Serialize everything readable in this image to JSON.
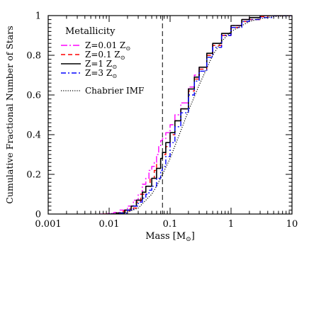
{
  "chart_data": {
    "type": "line",
    "title": "",
    "xlabel": "Mass [M",
    "xlabel_symbol": "⊙",
    "xlabel_close": "]",
    "ylabel": "Cumulative Fractional Number of Stars",
    "xscale": "log",
    "xlim": [
      0.001,
      10
    ],
    "ylim": [
      0,
      1
    ],
    "x_ticks": [
      {
        "value": 0.001,
        "label": "0.001"
      },
      {
        "value": 0.01,
        "label": "0.01"
      },
      {
        "value": 0.1,
        "label": "0.1"
      },
      {
        "value": 1,
        "label": "1"
      },
      {
        "value": 10,
        "label": "10"
      }
    ],
    "y_ticks": [
      {
        "value": 0,
        "label": "0"
      },
      {
        "value": 0.2,
        "label": "0.2"
      },
      {
        "value": 0.4,
        "label": "0.4"
      },
      {
        "value": 0.6,
        "label": "0.6"
      },
      {
        "value": 0.8,
        "label": "0.8"
      },
      {
        "value": 1,
        "label": "1"
      }
    ],
    "legend": {
      "title": "Metallicity",
      "placement": "top-left",
      "entries": [
        {
          "prefix": "Z=0.01 Z",
          "series": "Z=0.01"
        },
        {
          "prefix": "Z=0.1 Z",
          "series": "Z=0.1"
        },
        {
          "prefix": "Z=1 Z",
          "series": "Z=1"
        },
        {
          "prefix": "Z=3 Z",
          "series": "Z=3"
        }
      ],
      "sun_symbol": "⊙",
      "imf_label": "Chabrier IMF"
    },
    "vline": {
      "x": 0.075,
      "style": "dashed"
    },
    "series": [
      {
        "name": "Z=0.01 Z⊙",
        "color": "#ff00ff",
        "dash": "9,3,2,3",
        "width": 1.4,
        "step": true,
        "points": [
          [
            0.007,
            0
          ],
          [
            0.009,
            0.003
          ],
          [
            0.012,
            0.008
          ],
          [
            0.015,
            0.02
          ],
          [
            0.02,
            0.04
          ],
          [
            0.025,
            0.07
          ],
          [
            0.03,
            0.1
          ],
          [
            0.035,
            0.15
          ],
          [
            0.04,
            0.18
          ],
          [
            0.045,
            0.22
          ],
          [
            0.05,
            0.24
          ],
          [
            0.055,
            0.26
          ],
          [
            0.06,
            0.3
          ],
          [
            0.065,
            0.34
          ],
          [
            0.07,
            0.37
          ],
          [
            0.075,
            0.38
          ],
          [
            0.085,
            0.41
          ],
          [
            0.1,
            0.45
          ],
          [
            0.12,
            0.5
          ],
          [
            0.15,
            0.56
          ],
          [
            0.2,
            0.64
          ],
          [
            0.25,
            0.7
          ],
          [
            0.3,
            0.74
          ],
          [
            0.4,
            0.81
          ],
          [
            0.5,
            0.86
          ],
          [
            0.7,
            0.91
          ],
          [
            1,
            0.95
          ],
          [
            1.5,
            0.98
          ],
          [
            2,
            0.99
          ],
          [
            3,
            1
          ],
          [
            10,
            1
          ]
        ]
      },
      {
        "name": "Z=0.1 Z⊙",
        "color": "#ff0000",
        "dash": "6,4",
        "width": 1.4,
        "step": true,
        "points": [
          [
            0.008,
            0
          ],
          [
            0.012,
            0.005
          ],
          [
            0.017,
            0.015
          ],
          [
            0.022,
            0.03
          ],
          [
            0.028,
            0.06
          ],
          [
            0.033,
            0.1
          ],
          [
            0.04,
            0.14
          ],
          [
            0.047,
            0.18
          ],
          [
            0.055,
            0.22
          ],
          [
            0.06,
            0.25
          ],
          [
            0.07,
            0.28
          ],
          [
            0.075,
            0.3
          ],
          [
            0.085,
            0.34
          ],
          [
            0.1,
            0.4
          ],
          [
            0.12,
            0.47
          ],
          [
            0.15,
            0.53
          ],
          [
            0.2,
            0.62
          ],
          [
            0.25,
            0.68
          ],
          [
            0.3,
            0.73
          ],
          [
            0.4,
            0.8
          ],
          [
            0.5,
            0.85
          ],
          [
            0.7,
            0.9
          ],
          [
            1,
            0.94
          ],
          [
            1.5,
            0.97
          ],
          [
            2,
            0.98
          ],
          [
            3,
            0.995
          ],
          [
            4,
            1
          ],
          [
            10,
            1
          ]
        ]
      },
      {
        "name": "Z=1 Z⊙",
        "color": "#000000",
        "dash": "",
        "width": 1.6,
        "step": true,
        "points": [
          [
            0.009,
            0
          ],
          [
            0.013,
            0.005
          ],
          [
            0.018,
            0.02
          ],
          [
            0.023,
            0.04
          ],
          [
            0.028,
            0.07
          ],
          [
            0.035,
            0.11
          ],
          [
            0.04,
            0.14
          ],
          [
            0.05,
            0.18
          ],
          [
            0.06,
            0.23
          ],
          [
            0.07,
            0.28
          ],
          [
            0.075,
            0.31
          ],
          [
            0.085,
            0.36
          ],
          [
            0.1,
            0.41
          ],
          [
            0.12,
            0.47
          ],
          [
            0.15,
            0.53
          ],
          [
            0.2,
            0.63
          ],
          [
            0.25,
            0.69
          ],
          [
            0.3,
            0.74
          ],
          [
            0.4,
            0.81
          ],
          [
            0.5,
            0.86
          ],
          [
            0.7,
            0.91
          ],
          [
            1,
            0.95
          ],
          [
            1.5,
            0.98
          ],
          [
            2,
            0.99
          ],
          [
            3,
            1
          ],
          [
            10,
            1
          ]
        ]
      },
      {
        "name": "Z=3 Z⊙",
        "color": "#0000ff",
        "dash": "7,3,2,3",
        "width": 1.4,
        "step": true,
        "points": [
          [
            0.01,
            0
          ],
          [
            0.015,
            0.005
          ],
          [
            0.02,
            0.02
          ],
          [
            0.025,
            0.04
          ],
          [
            0.03,
            0.06
          ],
          [
            0.035,
            0.08
          ],
          [
            0.04,
            0.1
          ],
          [
            0.045,
            0.12
          ],
          [
            0.05,
            0.14
          ],
          [
            0.06,
            0.18
          ],
          [
            0.07,
            0.22
          ],
          [
            0.075,
            0.24
          ],
          [
            0.085,
            0.29
          ],
          [
            0.1,
            0.36
          ],
          [
            0.12,
            0.44
          ],
          [
            0.15,
            0.51
          ],
          [
            0.2,
            0.6
          ],
          [
            0.25,
            0.67
          ],
          [
            0.3,
            0.72
          ],
          [
            0.4,
            0.79
          ],
          [
            0.5,
            0.84
          ],
          [
            0.7,
            0.9
          ],
          [
            1,
            0.94
          ],
          [
            1.5,
            0.97
          ],
          [
            2,
            0.98
          ],
          [
            3,
            0.99
          ],
          [
            5,
            1
          ],
          [
            10,
            1
          ]
        ]
      },
      {
        "name": "Chabrier IMF",
        "color": "#000000",
        "dash": "1.2,2",
        "width": 1.2,
        "step": false,
        "points": [
          [
            0.01,
            0
          ],
          [
            0.02,
            0.01
          ],
          [
            0.03,
            0.03
          ],
          [
            0.04,
            0.07
          ],
          [
            0.05,
            0.1
          ],
          [
            0.06,
            0.14
          ],
          [
            0.075,
            0.2
          ],
          [
            0.1,
            0.28
          ],
          [
            0.15,
            0.42
          ],
          [
            0.2,
            0.52
          ],
          [
            0.3,
            0.65
          ],
          [
            0.5,
            0.8
          ],
          [
            0.7,
            0.87
          ],
          [
            1,
            0.92
          ],
          [
            2,
            0.97
          ],
          [
            3,
            0.985
          ],
          [
            5,
            0.995
          ],
          [
            10,
            1
          ]
        ]
      }
    ]
  }
}
